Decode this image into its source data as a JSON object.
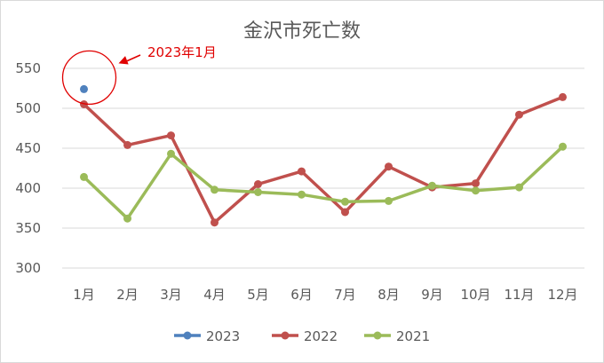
{
  "chart_data": {
    "type": "line",
    "title": "金沢市死亡数",
    "categories": [
      "1月",
      "2月",
      "3月",
      "4月",
      "5月",
      "6月",
      "7月",
      "8月",
      "9月",
      "10月",
      "11月",
      "12月"
    ],
    "ylim": [
      300,
      550
    ],
    "yticks": [
      300,
      350,
      400,
      450,
      500,
      550
    ],
    "grid": true,
    "legend_position": "bottom",
    "series": [
      {
        "name": "2023",
        "color": "#4f81bd",
        "values": [
          524,
          null,
          null,
          null,
          null,
          null,
          null,
          null,
          null,
          null,
          null,
          null
        ]
      },
      {
        "name": "2022",
        "color": "#c0504d",
        "values": [
          505,
          454,
          466,
          357,
          405,
          421,
          370,
          427,
          401,
          406,
          492,
          514
        ]
      },
      {
        "name": "2021",
        "color": "#9bbb59",
        "values": [
          414,
          362,
          443,
          398,
          395,
          392,
          383,
          384,
          403,
          397,
          401,
          452
        ]
      }
    ],
    "annotation": {
      "text": "2023年1月",
      "color": "#e00000",
      "target_series": "2023",
      "target_index": 0
    }
  }
}
